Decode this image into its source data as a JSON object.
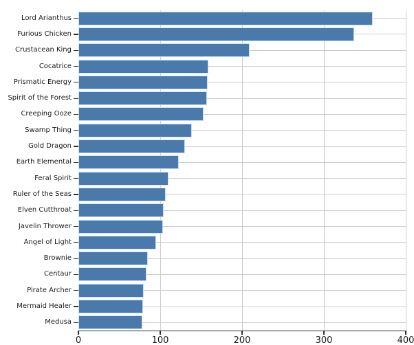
{
  "chart_data": {
    "type": "bar",
    "orientation": "horizontal",
    "title": "",
    "xlabel": "",
    "ylabel": "",
    "categories": [
      "Lord Arianthus",
      "Furious Chicken",
      "Crustacean King",
      "Cocatrice",
      "Prismatic Energy",
      "Spirit of the Forest",
      "Creeping Ooze",
      "Swamp Thing",
      "Gold Dragon",
      "Earth Elemental",
      "Feral Spirit",
      "Ruler of the Seas",
      "Elven Cutthroat",
      "Javelin Thrower",
      "Angel of Light",
      "Brownie",
      "Centaur",
      "Pirate Archer",
      "Mermaid Healer",
      "Medusa"
    ],
    "values": [
      360,
      337,
      209,
      159,
      158,
      157,
      153,
      139,
      130,
      123,
      110,
      107,
      104,
      103,
      95,
      85,
      83,
      80,
      79,
      78
    ],
    "xlim": [
      0,
      400
    ],
    "xticks": [
      0,
      100,
      200,
      300,
      400
    ],
    "xtick_labels": [
      "0",
      "100",
      "200",
      "300",
      "400"
    ],
    "grid": true,
    "legend": null,
    "colors": {
      "bar_fill": "#4a79ab",
      "bar_edge": "#cde0f3",
      "grid_line": "#cccccc",
      "axis_line": "#2b2b2b",
      "tick_text": "#1a1a1a"
    }
  }
}
